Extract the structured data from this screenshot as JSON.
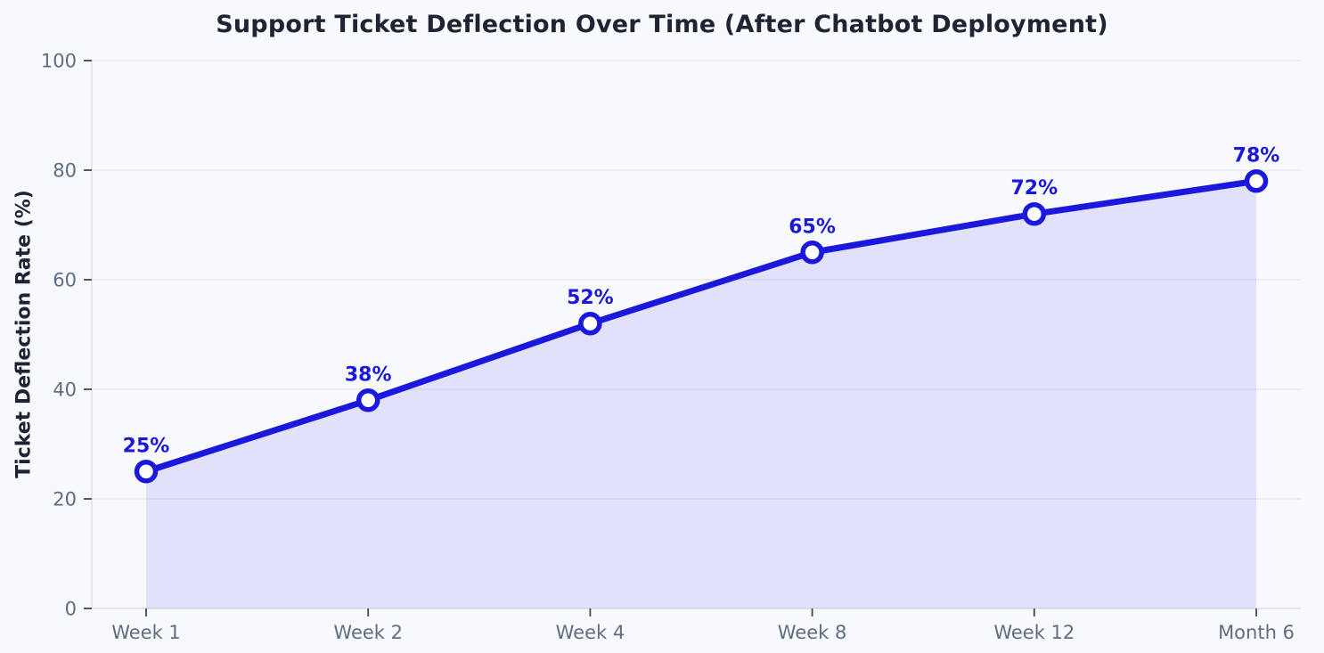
{
  "chart_data": {
    "type": "area",
    "title": "Support Ticket Deflection Over Time (After Chatbot Deployment)",
    "xlabel": "",
    "ylabel": "Ticket Deflection Rate (%)",
    "categories": [
      "Week 1",
      "Week 2",
      "Week 4",
      "Week 8",
      "Week 12",
      "Month 6"
    ],
    "values": [
      25,
      38,
      52,
      65,
      72,
      78
    ],
    "data_labels": [
      "25%",
      "38%",
      "52%",
      "65%",
      "72%",
      "78%"
    ],
    "ylim": [
      0,
      100
    ],
    "yticks": [
      0,
      20,
      40,
      60,
      80,
      100
    ],
    "ytick_labels": [
      "0",
      "20",
      "40",
      "60",
      "80",
      "100"
    ],
    "grid": "horizontal",
    "legend": "none",
    "marker": "circle-open",
    "colors": {
      "line": "#1b18dd",
      "marker_fill": "#ffffff",
      "area_fill": "rgba(27,24,221,0.10)",
      "data_label": "#1b18dd",
      "title_text": "#1e2433",
      "tick_text": "#5e6d84",
      "gridline": "#e8eaef",
      "spine": "#dfe2e9",
      "tick_mark": "#3f4654",
      "background": "#f8f9fc"
    }
  }
}
